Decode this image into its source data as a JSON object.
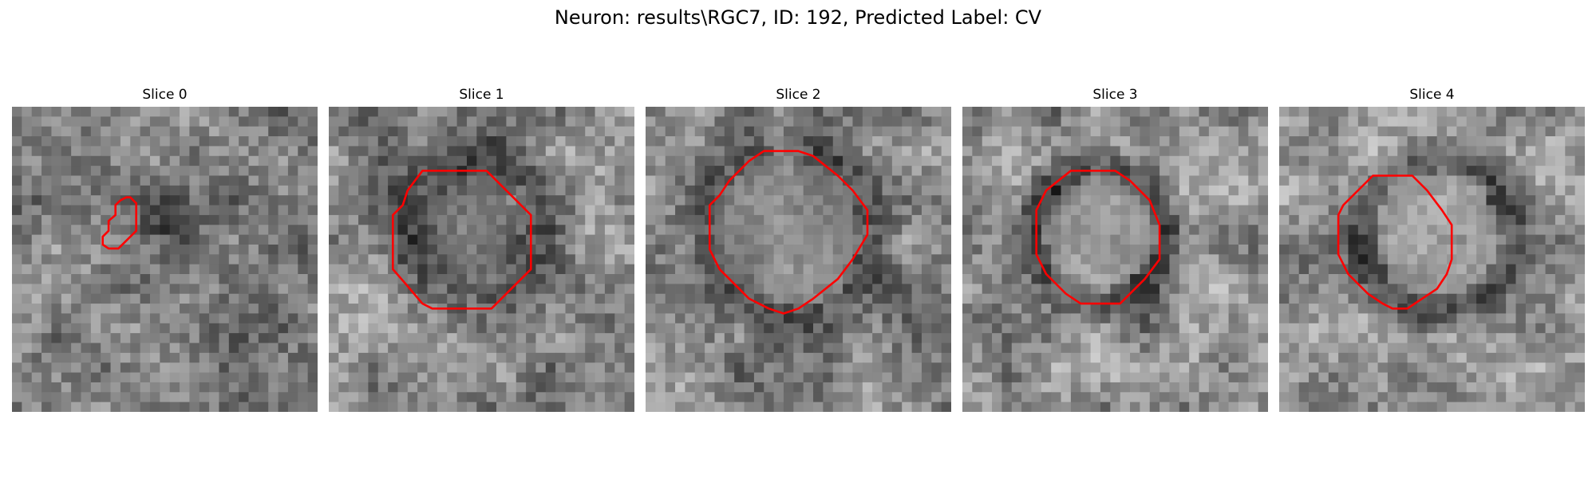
{
  "figure": {
    "suptitle": "Neuron: results\\RGC7, ID: 192, Predicted Label: CV",
    "contour_color": "#ff0000"
  },
  "slices": [
    {
      "title": "Slice 0"
    },
    {
      "title": "Slice 1"
    },
    {
      "title": "Slice 2"
    },
    {
      "title": "Slice 3"
    },
    {
      "title": "Slice 4"
    }
  ]
}
